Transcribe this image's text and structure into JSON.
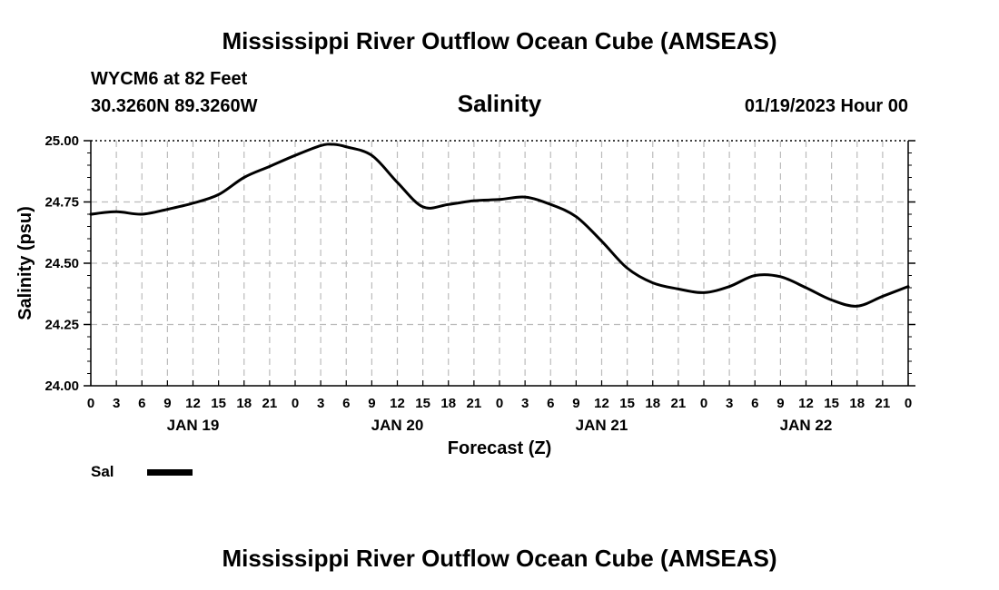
{
  "page": {
    "title": "Mississippi River Outflow Ocean Cube (AMSEAS)",
    "footer_title": "Mississippi River Outflow Ocean Cube (AMSEAS)"
  },
  "station": {
    "name_depth": "WYCM6 at 82 Feet",
    "coords": "30.3260N  89.3260W",
    "datetime": "01/19/2023 Hour 00"
  },
  "colors": {
    "line": "#000000",
    "grid": "#bbbbbb",
    "axis": "#000000"
  },
  "chart_data": {
    "type": "line",
    "title": "Salinity",
    "xlabel": "Forecast (Z)",
    "ylabel": "Salinity (psu)",
    "ylim": [
      24.0,
      25.0
    ],
    "xlim_hours": [
      0,
      96
    ],
    "y_ticks": [
      "24.00",
      "24.25",
      "24.50",
      "24.75",
      "25.00"
    ],
    "x_tick_labels": [
      "0",
      "3",
      "6",
      "9",
      "12",
      "15",
      "18",
      "21",
      "0",
      "3",
      "6",
      "9",
      "12",
      "15",
      "18",
      "21",
      "0",
      "3",
      "6",
      "9",
      "12",
      "15",
      "18",
      "21",
      "0",
      "3",
      "6",
      "9",
      "12",
      "15",
      "18",
      "21",
      "0"
    ],
    "day_labels": [
      {
        "hour": 12,
        "label": "JAN 19"
      },
      {
        "hour": 36,
        "label": "JAN 20"
      },
      {
        "hour": 60,
        "label": "JAN 21"
      },
      {
        "hour": 84,
        "label": "JAN 22"
      }
    ],
    "legend": [
      {
        "name": "Sal"
      }
    ],
    "series": [
      {
        "name": "Sal",
        "x": [
          0,
          3,
          6,
          9,
          12,
          15,
          18,
          21,
          24,
          27,
          28.5,
          30,
          33,
          36,
          39,
          42,
          45,
          48,
          51,
          54,
          57,
          60,
          63,
          66,
          69,
          72,
          75,
          78,
          81,
          84,
          87,
          90,
          93,
          96
        ],
        "y": [
          24.7,
          24.71,
          24.7,
          24.72,
          24.745,
          24.78,
          24.85,
          24.895,
          24.94,
          24.98,
          24.985,
          24.975,
          24.94,
          24.83,
          24.73,
          24.74,
          24.755,
          24.76,
          24.77,
          24.74,
          24.69,
          24.59,
          24.48,
          24.42,
          24.395,
          24.38,
          24.405,
          24.45,
          24.445,
          24.4,
          24.35,
          24.325,
          24.365,
          24.405
        ]
      }
    ]
  }
}
